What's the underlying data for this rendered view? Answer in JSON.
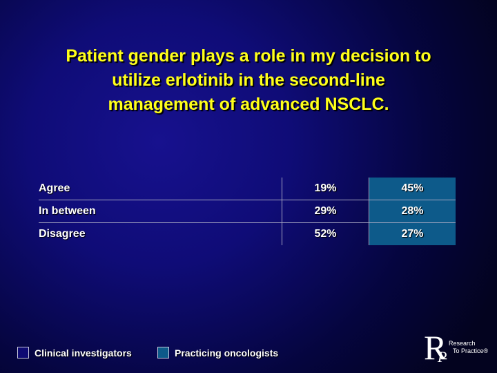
{
  "slide": {
    "title_lines": [
      "Patient gender plays a role in my decision to",
      "utilize erlotinib in the second-line",
      "management of advanced NSCLC."
    ]
  },
  "table": {
    "rows": [
      {
        "label": "Agree",
        "clinical_investigators": "19%",
        "practicing_oncologists": "45%"
      },
      {
        "label": "In between",
        "clinical_investigators": "29%",
        "practicing_oncologists": "28%"
      },
      {
        "label": "Disagree",
        "clinical_investigators": "52%",
        "practicing_oncologists": "27%"
      }
    ]
  },
  "legend": {
    "clinical_investigators": "Clinical investigators",
    "practicing_oncologists": "Practicing oncologists",
    "colors": {
      "clinical_investigators": "#0e0a73",
      "practicing_oncologists": "#0d5a8a"
    }
  },
  "logo": {
    "letter_r": "R",
    "letter_p": "P",
    "line1": "Research",
    "line2": "To Practice®"
  }
}
